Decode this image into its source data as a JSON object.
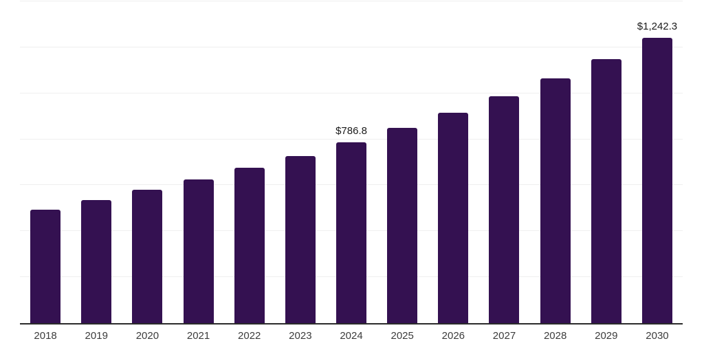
{
  "chart_data": {
    "type": "bar",
    "title": "",
    "xlabel": "",
    "ylabel": "",
    "categories": [
      "2018",
      "2019",
      "2020",
      "2021",
      "2022",
      "2023",
      "2024",
      "2025",
      "2026",
      "2027",
      "2028",
      "2029",
      "2030"
    ],
    "values": [
      495,
      536,
      579,
      625,
      675,
      728,
      786.8,
      849,
      915,
      987,
      1064,
      1150,
      1242.3
    ],
    "data_labels": [
      "",
      "",
      "",
      "",
      "",
      "",
      "$786.8",
      "",
      "",
      "",
      "",
      "",
      "$1,242.3"
    ],
    "ylim": [
      0,
      1400
    ],
    "gridline_step": 200,
    "grid": "horizontal-only, no y tick labels",
    "legend": "none",
    "bar_color": "#341151",
    "gridline_color": "#efefef",
    "axis_line_color": "#2b2b2b",
    "tick_label_color": "#3c3c3c",
    "data_label_color": "#1a1a1a",
    "background": "#ffffff"
  }
}
